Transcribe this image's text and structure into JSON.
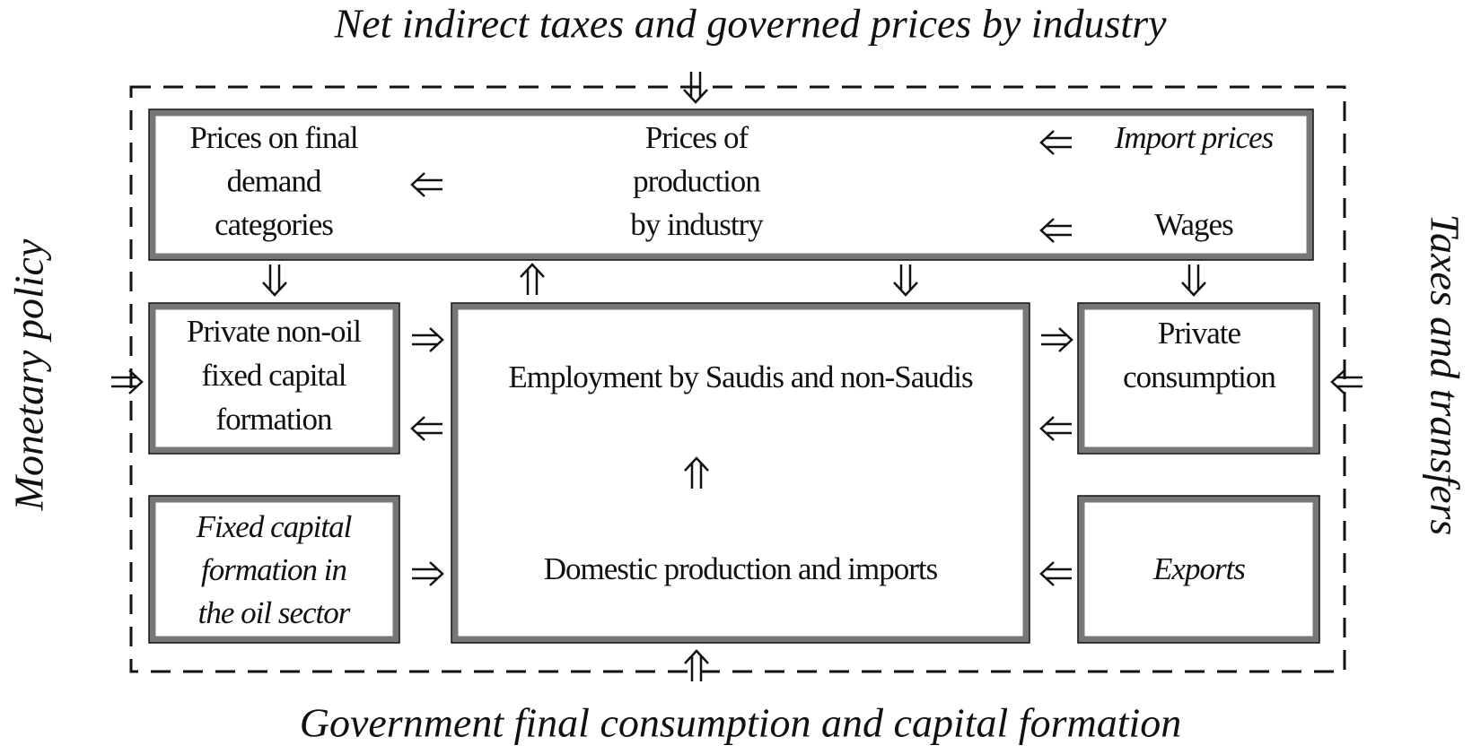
{
  "title": "Net indirect taxes and governed prices by industry",
  "footer": "Government final consumption and capital formation",
  "left_label": "Monetary policy",
  "right_label": "Taxes and transfers",
  "nodes": [
    {
      "lines": [
        "Prices on final",
        "demand",
        "categories"
      ]
    },
    {
      "lines": [
        "Prices of",
        "production",
        "by industry"
      ]
    },
    {
      "lines": [
        "Import prices"
      ]
    },
    {
      "lines": [
        "Wages"
      ]
    },
    {
      "lines": [
        "Private non-oil",
        "fixed capital",
        "formation"
      ]
    },
    {
      "lines": [
        "Employment by Saudis and non-Saudis"
      ]
    },
    {
      "lines": [
        "Domestic production and imports"
      ]
    },
    {
      "lines": [
        "Private",
        "consumption"
      ]
    },
    {
      "lines": [
        "Fixed capital",
        "formation in",
        "the oil sector"
      ]
    },
    {
      "lines": [
        "Exports"
      ]
    }
  ]
}
